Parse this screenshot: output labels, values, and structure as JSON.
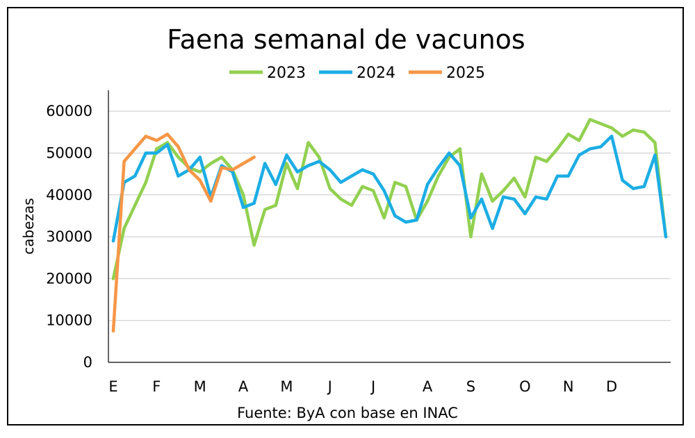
{
  "chart_data": {
    "type": "line",
    "title": "Faena semanal de vacunos",
    "ylabel": "cabezas",
    "xlabel": "",
    "source": "Fuente: ByA con base en INAC",
    "ylim": [
      0,
      65000
    ],
    "yticks": [
      0,
      10000,
      20000,
      30000,
      40000,
      50000,
      60000
    ],
    "grid": true,
    "legend_position": "top",
    "x_month_labels": [
      "E",
      "F",
      "M",
      "A",
      "M",
      "J",
      "J",
      "A",
      "S",
      "O",
      "N",
      "D"
    ],
    "x_month_label_weeks": [
      1,
      5,
      9,
      13,
      17,
      21,
      25,
      30,
      34,
      39,
      43,
      47
    ],
    "series": [
      {
        "name": "2023",
        "color": "#92D050",
        "values": [
          20000,
          32000,
          37500,
          43000,
          51000,
          52500,
          49000,
          46500,
          45500,
          47500,
          49000,
          46000,
          40000,
          28000,
          36500,
          37500,
          47500,
          41500,
          52500,
          49000,
          41500,
          39000,
          37500,
          42000,
          41000,
          34500,
          43000,
          42000,
          34000,
          38500,
          44500,
          49000,
          51000,
          30000,
          45000,
          38500,
          41000,
          44000,
          39500,
          49000,
          48000,
          51000,
          54500,
          53000,
          58000,
          57000,
          56000,
          54000,
          55500,
          55000,
          52500,
          30000
        ]
      },
      {
        "name": "2024",
        "color": "#1CADE4",
        "values": [
          29000,
          43000,
          44500,
          50000,
          50000,
          52000,
          44500,
          46000,
          49000,
          39500,
          47000,
          45500,
          37000,
          38000,
          47500,
          42500,
          49500,
          45500,
          47000,
          48000,
          46000,
          43000,
          44500,
          46000,
          45000,
          41000,
          35000,
          33500,
          34000,
          42500,
          46500,
          50000,
          47000,
          34500,
          39000,
          32000,
          39500,
          39000,
          35500,
          39500,
          39000,
          44500,
          44500,
          49500,
          51000,
          51500,
          54000,
          43500,
          41500,
          42000,
          49500,
          30000
        ]
      },
      {
        "name": "2025",
        "color": "#F79646",
        "values": [
          7500,
          48000,
          51000,
          54000,
          53000,
          54500,
          51500,
          46000,
          43500,
          38500,
          46500,
          46000,
          47500,
          49000
        ]
      }
    ]
  }
}
